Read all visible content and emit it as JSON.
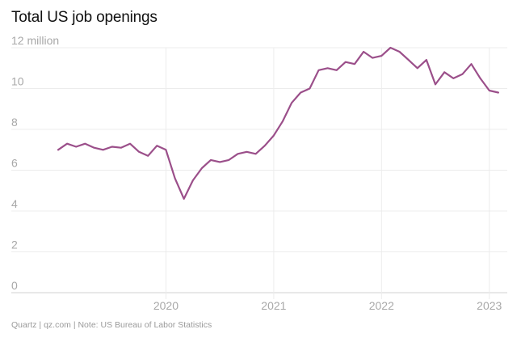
{
  "chart_data": {
    "type": "line",
    "title": "Total US job openings",
    "y_unit_label": "12 million",
    "ylim": [
      0,
      12
    ],
    "y_ticks": [
      {
        "value": 0,
        "label": "0"
      },
      {
        "value": 2,
        "label": "2"
      },
      {
        "value": 4,
        "label": "4"
      },
      {
        "value": 6,
        "label": "6"
      },
      {
        "value": 8,
        "label": "8"
      },
      {
        "value": 10,
        "label": "10"
      },
      {
        "value": 12,
        "label": "12 million"
      }
    ],
    "x_ticks": [
      {
        "value": "2020-01",
        "label": "2020"
      },
      {
        "value": "2021-01",
        "label": "2021"
      },
      {
        "value": "2022-01",
        "label": "2022"
      },
      {
        "value": "2023-01",
        "label": "2023"
      }
    ],
    "xlim": [
      "2019-01",
      "2023-03"
    ],
    "grid": true,
    "color": "#9b4f8a",
    "series": [
      {
        "x": [
          "2019-01",
          "2019-02",
          "2019-03",
          "2019-04",
          "2019-05",
          "2019-06",
          "2019-07",
          "2019-08",
          "2019-09",
          "2019-10",
          "2019-11",
          "2019-12",
          "2020-01",
          "2020-02",
          "2020-03",
          "2020-04",
          "2020-05",
          "2020-06",
          "2020-07",
          "2020-08",
          "2020-09",
          "2020-10",
          "2020-11",
          "2020-12",
          "2021-01",
          "2021-02",
          "2021-03",
          "2021-04",
          "2021-05",
          "2021-06",
          "2021-07",
          "2021-08",
          "2021-09",
          "2021-10",
          "2021-11",
          "2021-12",
          "2022-01",
          "2022-02",
          "2022-03",
          "2022-04",
          "2022-05",
          "2022-06",
          "2022-07",
          "2022-08",
          "2022-09",
          "2022-10",
          "2022-11",
          "2022-12",
          "2023-01",
          "2023-02"
        ],
        "values": [
          7.0,
          7.3,
          7.15,
          7.3,
          7.1,
          7.0,
          7.15,
          7.1,
          7.3,
          6.9,
          6.7,
          7.2,
          7.0,
          5.6,
          4.6,
          5.5,
          6.1,
          6.5,
          6.4,
          6.5,
          6.8,
          6.9,
          6.8,
          7.2,
          7.7,
          8.4,
          9.3,
          9.8,
          10.0,
          10.9,
          11.0,
          10.9,
          11.3,
          11.2,
          11.8,
          11.5,
          11.6,
          12.0,
          11.8,
          11.4,
          11.0,
          11.4,
          10.2,
          10.8,
          10.5,
          10.7,
          11.2,
          10.5,
          9.9,
          9.8
        ]
      }
    ]
  },
  "footer": {
    "source_text": "Quartz | qz.com | Note: US Bureau of Labor Statistics"
  }
}
